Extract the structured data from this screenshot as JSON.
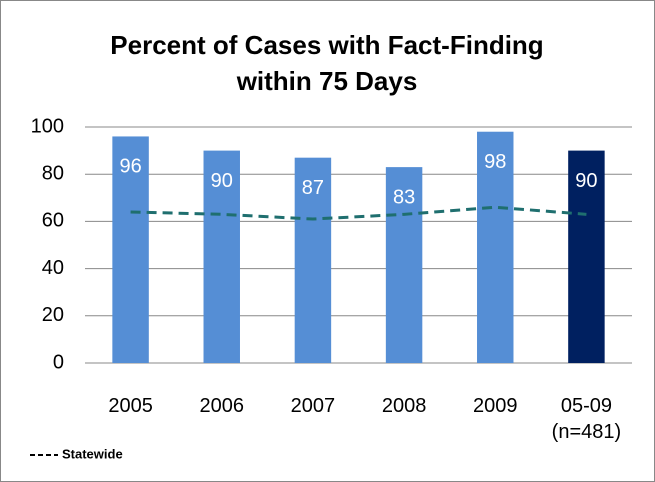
{
  "chart_data": {
    "type": "bar",
    "title_lines": [
      "Percent of Cases with Fact-Finding",
      "within 75 Days"
    ],
    "categories": [
      "2005",
      "2006",
      "2007",
      "2008",
      "2009",
      "05-09 (n=481)"
    ],
    "values": [
      96,
      90,
      87,
      83,
      98,
      90
    ],
    "colors": [
      "#558ed5",
      "#558ed5",
      "#558ed5",
      "#558ed5",
      "#558ed5",
      "#002060"
    ],
    "series": [
      {
        "name": "Statewide",
        "color": "#1f6f6f",
        "values": [
          64,
          63,
          61,
          63,
          66,
          63
        ],
        "dashed": true
      }
    ],
    "ylim": [
      0,
      100
    ],
    "yticks": [
      0,
      20,
      40,
      60,
      80,
      100
    ],
    "grid": true,
    "legend": "bottom-left"
  }
}
